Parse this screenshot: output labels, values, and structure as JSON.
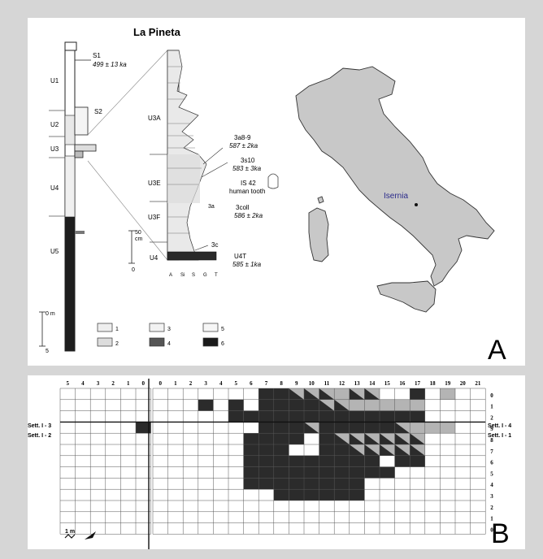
{
  "panel_a": {
    "title": "La Pineta",
    "letter": "A",
    "units_left": [
      "U1",
      "U2",
      "U3",
      "U4",
      "U5"
    ],
    "units_mid": [
      "U3A",
      "U3E",
      "U3F",
      "U4"
    ],
    "sample_s1": "S1",
    "date_s1": "499 ± 13 ka",
    "sample_s2": "S2",
    "label_3a8": "3a8-9",
    "date_3a8": "587 ± 2ka",
    "label_3s10": "3s10",
    "date_3s10": "583 ± 3ka",
    "label_is42": "IS 42",
    "label_tooth": "human tooth",
    "label_3a": "3a",
    "label_3coll": "3coll",
    "date_3coll": "586 ± 2ka",
    "label_3c": "3c",
    "label_u4t": "U4T",
    "date_u4t": "585 ± 1ka",
    "scale_top": "50",
    "scale_unit": "cm",
    "scale_zero": "0",
    "grain_labels": [
      "A",
      "Si",
      "S",
      "G",
      "T"
    ],
    "main_scale_top": "0 m",
    "main_scale_bottom": "5",
    "legend": [
      "1",
      "2",
      "3",
      "4",
      "5",
      "6"
    ],
    "map_label": "Isernia"
  },
  "panel_b": {
    "letter": "B",
    "col_labels_left": [
      "5",
      "4",
      "3",
      "2",
      "1",
      "0"
    ],
    "col_labels_right": [
      "0",
      "1",
      "2",
      "3",
      "4",
      "5",
      "6",
      "7",
      "8",
      "9",
      "10",
      "11",
      "12",
      "13",
      "14",
      "15",
      "16",
      "17",
      "18",
      "19",
      "20",
      "21"
    ],
    "row_labels": [
      "0",
      "1",
      "2",
      "9",
      "8",
      "7",
      "6",
      "5",
      "4",
      "3",
      "2",
      "1",
      "0"
    ],
    "side_left_top": "Sett. I - 3",
    "side_left_bottom": "Sett. I - 2",
    "side_right_top": "Sett. I - 4",
    "side_right_bottom": "Sett. I - 1",
    "scale_label": "1 m",
    "colors": {
      "dark": "#2b2b2b",
      "light": "#b4b4b4",
      "grid": "#555555"
    },
    "cells": {
      "0": {
        "7": "D",
        "8": "D",
        "9": "H",
        "10": "H",
        "11": "H",
        "12": "L",
        "13": "H",
        "14": "H",
        "17": "D",
        "19": "L"
      },
      "1": {
        "3": "D",
        "5": "D",
        "7": "D",
        "8": "D",
        "9": "D",
        "10": "D",
        "11": "H",
        "12": "H",
        "13": "L",
        "14": "L",
        "15": "L",
        "16": "L",
        "17": "L"
      },
      "2": {
        "5": "D",
        "6": "D",
        "7": "D",
        "8": "D",
        "9": "D",
        "10": "D",
        "11": "D",
        "12": "D",
        "13": "D",
        "14": "D",
        "15": "D",
        "16": "D",
        "17": "D"
      },
      "3": {
        "7": "D",
        "8": "D",
        "9": "D",
        "10": "H",
        "11": "D",
        "12": "D",
        "13": "D",
        "14": "D",
        "15": "D",
        "16": "H",
        "17": "L",
        "18": "L",
        "19": "L"
      },
      "4": {
        "6": "D",
        "7": "D",
        "8": "D",
        "9": "D",
        "11": "D",
        "12": "H",
        "13": "H",
        "14": "H",
        "15": "H",
        "16": "H",
        "17": "H"
      },
      "5": {
        "6": "D",
        "7": "D",
        "8": "D",
        "11": "D",
        "12": "D",
        "13": "H",
        "14": "H",
        "15": "H",
        "16": "H",
        "17": "H"
      },
      "6": {
        "6": "D",
        "7": "D",
        "8": "D",
        "9": "D",
        "10": "D",
        "11": "D",
        "12": "D",
        "13": "D",
        "14": "D",
        "16": "D",
        "17": "D"
      },
      "7": {
        "6": "D",
        "7": "D",
        "8": "D",
        "9": "D",
        "10": "D",
        "11": "D",
        "12": "D",
        "13": "D",
        "14": "D",
        "15": "D"
      },
      "8": {
        "6": "D",
        "7": "D",
        "8": "D",
        "9": "D",
        "10": "D",
        "11": "D",
        "12": "D",
        "13": "D"
      },
      "9": {
        "8": "D",
        "9": "D",
        "10": "D",
        "11": "D",
        "12": "D",
        "13": "D"
      }
    },
    "left_dark": {
      "3": "0"
    }
  }
}
